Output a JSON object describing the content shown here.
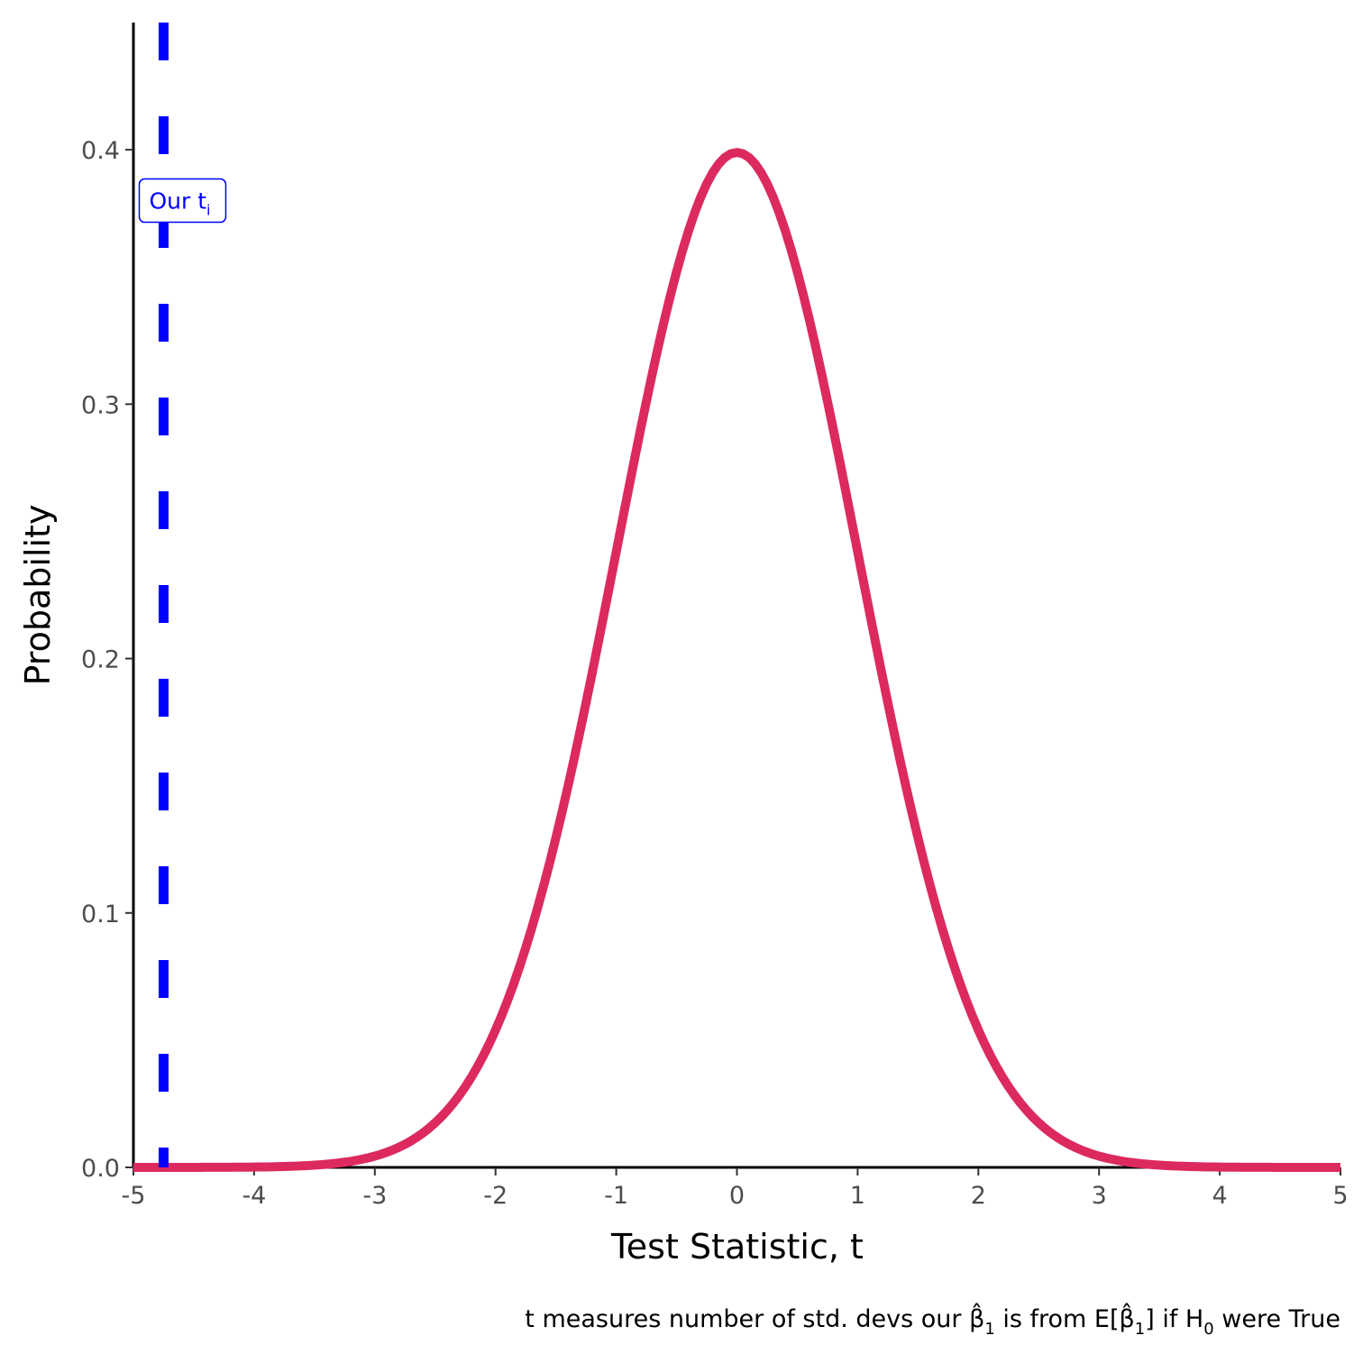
{
  "chart_data": {
    "type": "line",
    "xlabel": "Test Statistic, t",
    "ylabel": "Probability",
    "caption": {
      "part1": "t measures number of std. devs our ",
      "beta": "β̂",
      "sub1": "1",
      "part2": " is from E[",
      "beta2": "β̂",
      "sub2": "1",
      "part3": "] if H",
      "sub3": "0",
      "part4": " were True"
    },
    "xlim": [
      -5,
      5
    ],
    "ylim": [
      0,
      0.45
    ],
    "x_ticks": [
      "-5",
      "-4",
      "-3",
      "-2",
      "-1",
      "0",
      "1",
      "2",
      "3",
      "4",
      "5"
    ],
    "y_ticks": [
      "0.0",
      "0.1",
      "0.2",
      "0.3",
      "0.4"
    ],
    "series": [
      {
        "distribution": "standard normal density",
        "color": "#dc2a5f",
        "x": [
          -5,
          -4.5,
          -4,
          -3.5,
          -3,
          -2.75,
          -2.5,
          -2.25,
          -2,
          -1.75,
          -1.5,
          -1.25,
          -1,
          -0.75,
          -0.5,
          -0.25,
          0,
          0.25,
          0.5,
          0.75,
          1,
          1.25,
          1.5,
          1.75,
          2,
          2.25,
          2.5,
          2.75,
          3,
          3.5,
          4,
          4.5,
          5
        ],
        "y": [
          1.5e-06,
          1.6e-05,
          0.000134,
          0.000873,
          0.004432,
          0.009094,
          0.017528,
          0.03174,
          0.053991,
          0.086277,
          0.129518,
          0.182649,
          0.241971,
          0.301137,
          0.352065,
          0.386668,
          0.398942,
          0.386668,
          0.352065,
          0.301137,
          0.241971,
          0.182649,
          0.129518,
          0.086277,
          0.053991,
          0.03174,
          0.017528,
          0.009094,
          0.004432,
          0.000873,
          0.000134,
          1.6e-05,
          1.5e-06
        ]
      }
    ],
    "vline": {
      "x": -4.75,
      "color": "#0000ff",
      "style": "dashed",
      "label": "Our t",
      "label_sub": "i",
      "label_y": 0.38
    },
    "grid": false
  }
}
